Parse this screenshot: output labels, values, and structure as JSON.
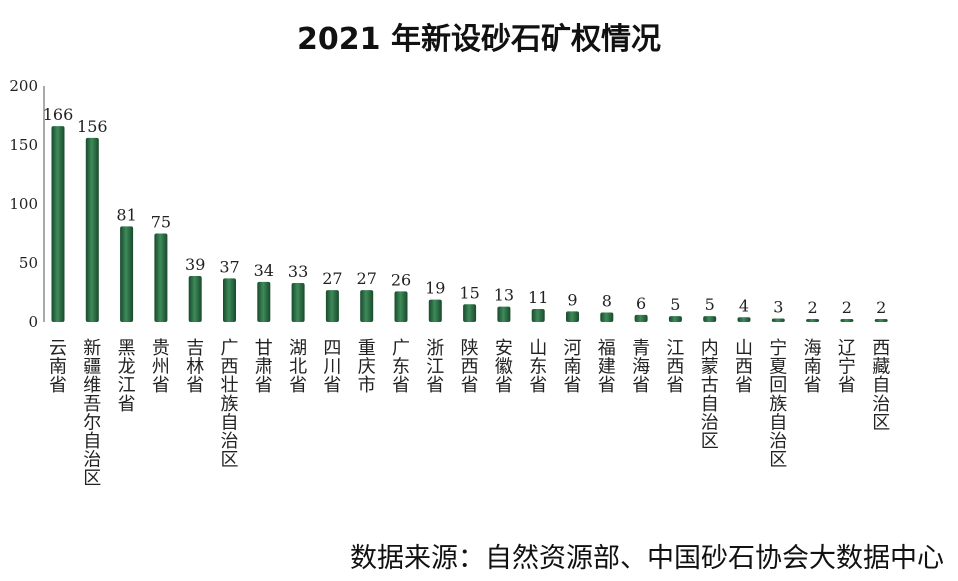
{
  "chart_data": {
    "type": "bar",
    "title": "2021 年新设砂石矿权情况",
    "xlabel": "",
    "ylabel": "",
    "ylim": [
      0,
      200
    ],
    "yticks": [
      0,
      50,
      100,
      150,
      200
    ],
    "grid": false,
    "legend": "none",
    "categories": [
      "云南省",
      "新疆维吾尔自治区",
      "黑龙江省",
      "贵州省",
      "吉林省",
      "广西壮族自治区",
      "甘肃省",
      "湖北省",
      "四川省",
      "重庆市",
      "广东省",
      "浙江省",
      "陕西省",
      "安徽省",
      "山东省",
      "河南省",
      "福建省",
      "青海省",
      "江西省",
      "内蒙古自治区",
      "山西省",
      "宁夏回族自治区",
      "海南省",
      "辽宁省",
      "西藏自治区"
    ],
    "values": [
      166,
      156,
      81,
      75,
      39,
      37,
      34,
      33,
      27,
      27,
      26,
      19,
      15,
      13,
      11,
      9,
      8,
      6,
      5,
      5,
      4,
      3,
      2,
      2,
      2
    ],
    "colors": {
      "bar": "#1e5a36",
      "bar_highlight": "#3f8a5a",
      "axis": "#555555"
    }
  },
  "source": "数据来源：自然资源部、中国砂石协会大数据中心"
}
